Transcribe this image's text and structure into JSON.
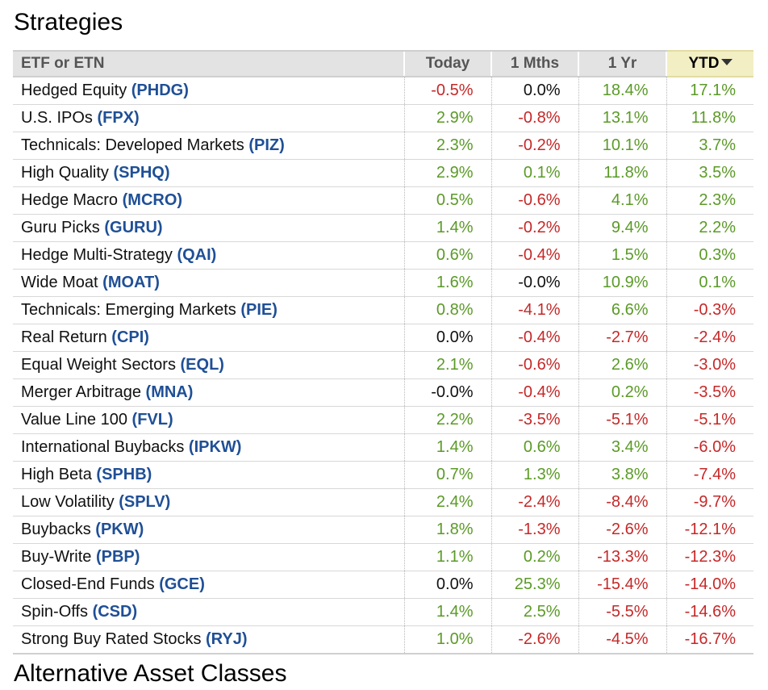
{
  "title": "Strategies",
  "next_section_title": "Alternative Asset Classes",
  "colors": {
    "positive": "#5b9a27",
    "negative": "#c62828",
    "ticker": "#1f4f96",
    "sorted_header_bg": "#f3efc4"
  },
  "table": {
    "headers": [
      "ETF or ETN",
      "Today",
      "1 Mths",
      "1 Yr",
      "YTD"
    ],
    "sorted_column": "YTD",
    "sort_icon": "caret-down-icon",
    "rows": [
      {
        "name": "Hedged Equity",
        "ticker": "(PHDG)",
        "today": "-0.5%",
        "m1": "0.0%",
        "y1": "18.4%",
        "ytd": "17.1%"
      },
      {
        "name": "U.S. IPOs",
        "ticker": "(FPX)",
        "today": "2.9%",
        "m1": "-0.8%",
        "y1": "13.1%",
        "ytd": "11.8%"
      },
      {
        "name": "Technicals: Developed Markets",
        "ticker": "(PIZ)",
        "today": "2.3%",
        "m1": "-0.2%",
        "y1": "10.1%",
        "ytd": "3.7%"
      },
      {
        "name": "High Quality",
        "ticker": "(SPHQ)",
        "today": "2.9%",
        "m1": "0.1%",
        "y1": "11.8%",
        "ytd": "3.5%"
      },
      {
        "name": "Hedge Macro",
        "ticker": "(MCRO)",
        "today": "0.5%",
        "m1": "-0.6%",
        "y1": "4.1%",
        "ytd": "2.3%"
      },
      {
        "name": "Guru Picks",
        "ticker": "(GURU)",
        "today": "1.4%",
        "m1": "-0.2%",
        "y1": "9.4%",
        "ytd": "2.2%"
      },
      {
        "name": "Hedge Multi-Strategy",
        "ticker": "(QAI)",
        "today": "0.6%",
        "m1": "-0.4%",
        "y1": "1.5%",
        "ytd": "0.3%"
      },
      {
        "name": "Wide Moat",
        "ticker": "(MOAT)",
        "today": "1.6%",
        "m1": "-0.0%",
        "y1": "10.9%",
        "ytd": "0.1%"
      },
      {
        "name": "Technicals: Emerging Markets",
        "ticker": "(PIE)",
        "today": "0.8%",
        "m1": "-4.1%",
        "y1": "6.6%",
        "ytd": "-0.3%"
      },
      {
        "name": "Real Return",
        "ticker": "(CPI)",
        "today": "0.0%",
        "m1": "-0.4%",
        "y1": "-2.7%",
        "ytd": "-2.4%"
      },
      {
        "name": "Equal Weight Sectors",
        "ticker": "(EQL)",
        "today": "2.1%",
        "m1": "-0.6%",
        "y1": "2.6%",
        "ytd": "-3.0%"
      },
      {
        "name": "Merger Arbitrage",
        "ticker": "(MNA)",
        "today": "-0.0%",
        "m1": "-0.4%",
        "y1": "0.2%",
        "ytd": "-3.5%"
      },
      {
        "name": "Value Line 100",
        "ticker": "(FVL)",
        "today": "2.2%",
        "m1": "-3.5%",
        "y1": "-5.1%",
        "ytd": "-5.1%"
      },
      {
        "name": "International Buybacks",
        "ticker": "(IPKW)",
        "today": "1.4%",
        "m1": "0.6%",
        "y1": "3.4%",
        "ytd": "-6.0%"
      },
      {
        "name": "High Beta",
        "ticker": "(SPHB)",
        "today": "0.7%",
        "m1": "1.3%",
        "y1": "3.8%",
        "ytd": "-7.4%"
      },
      {
        "name": "Low Volatility",
        "ticker": "(SPLV)",
        "today": "2.4%",
        "m1": "-2.4%",
        "y1": "-8.4%",
        "ytd": "-9.7%"
      },
      {
        "name": "Buybacks",
        "ticker": "(PKW)",
        "today": "1.8%",
        "m1": "-1.3%",
        "y1": "-2.6%",
        "ytd": "-12.1%"
      },
      {
        "name": "Buy-Write",
        "ticker": "(PBP)",
        "today": "1.1%",
        "m1": "0.2%",
        "y1": "-13.3%",
        "ytd": "-12.3%"
      },
      {
        "name": "Closed-End Funds",
        "ticker": "(GCE)",
        "today": "0.0%",
        "m1": "25.3%",
        "y1": "-15.4%",
        "ytd": "-14.0%"
      },
      {
        "name": "Spin-Offs",
        "ticker": "(CSD)",
        "today": "1.4%",
        "m1": "2.5%",
        "y1": "-5.5%",
        "ytd": "-14.6%"
      },
      {
        "name": "Strong Buy Rated Stocks",
        "ticker": "(RYJ)",
        "today": "1.0%",
        "m1": "-2.6%",
        "y1": "-4.5%",
        "ytd": "-16.7%"
      }
    ]
  }
}
